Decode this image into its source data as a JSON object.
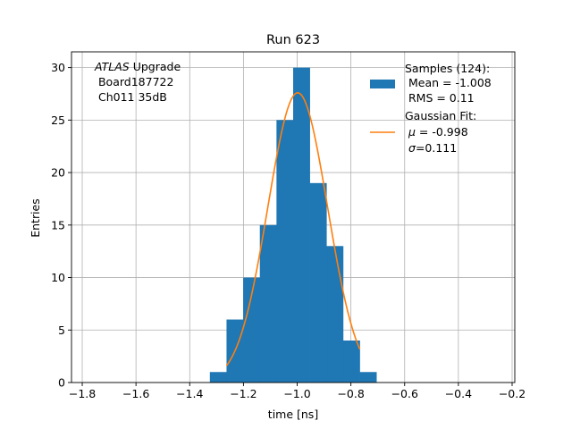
{
  "chart_data": {
    "type": "bar",
    "title": "Run 623",
    "xlabel": "time [ns]",
    "ylabel": "Entries",
    "xlim": [
      -1.84,
      -0.19
    ],
    "ylim": [
      0,
      31.5
    ],
    "grid": true,
    "xticks": [
      -1.8,
      -1.6,
      -1.4,
      -1.2,
      -1.0,
      -0.8,
      -0.6,
      -0.4,
      -0.2
    ],
    "xtick_labels": [
      "−1.8",
      "−1.6",
      "−1.4",
      "−1.2",
      "−1.0",
      "−0.8",
      "−0.6",
      "−0.4",
      "−0.2"
    ],
    "yticks": [
      0,
      5,
      10,
      15,
      20,
      25,
      30
    ],
    "ytick_labels": [
      "0",
      "5",
      "10",
      "15",
      "20",
      "25",
      "30"
    ],
    "histogram": {
      "name": "Samples (124):",
      "color": "#1f77b4",
      "bins": [
        {
          "x0": -1.325,
          "x1": -1.263,
          "count": 1
        },
        {
          "x0": -1.263,
          "x1": -1.201,
          "count": 6
        },
        {
          "x0": -1.201,
          "x1": -1.139,
          "count": 10
        },
        {
          "x0": -1.139,
          "x1": -1.077,
          "count": 15
        },
        {
          "x0": -1.077,
          "x1": -1.015,
          "count": 25
        },
        {
          "x0": -1.015,
          "x1": -0.953,
          "count": 30
        },
        {
          "x0": -0.953,
          "x1": -0.891,
          "count": 19
        },
        {
          "x0": -0.891,
          "x1": -0.829,
          "count": 13
        },
        {
          "x0": -0.829,
          "x1": -0.767,
          "count": 4
        },
        {
          "x0": -0.767,
          "x1": -0.705,
          "count": 1
        }
      ]
    },
    "fit": {
      "name": "Gaussian Fit:",
      "color": "#ff7f0e",
      "mu": -0.998,
      "sigma": 0.111,
      "amplitude": 27.6,
      "x_range": [
        -1.263,
        -0.767
      ]
    },
    "annotation": {
      "italic": "ATLAS",
      "line1_rest": " Upgrade",
      "line2": " Board187722",
      "line3": " Ch011 35dB"
    },
    "legend": {
      "placement": "top-right",
      "samples_title": "Samples (124):",
      "samples_mean": " Mean = -1.008",
      "samples_rms": " RMS = 0.11",
      "fit_title": "Gaussian Fit:",
      "fit_mu_symbol": "μ",
      "fit_mu_value": " = -0.998",
      "fit_sigma_symbol": "σ",
      "fit_sigma_value": "=0.111"
    }
  }
}
